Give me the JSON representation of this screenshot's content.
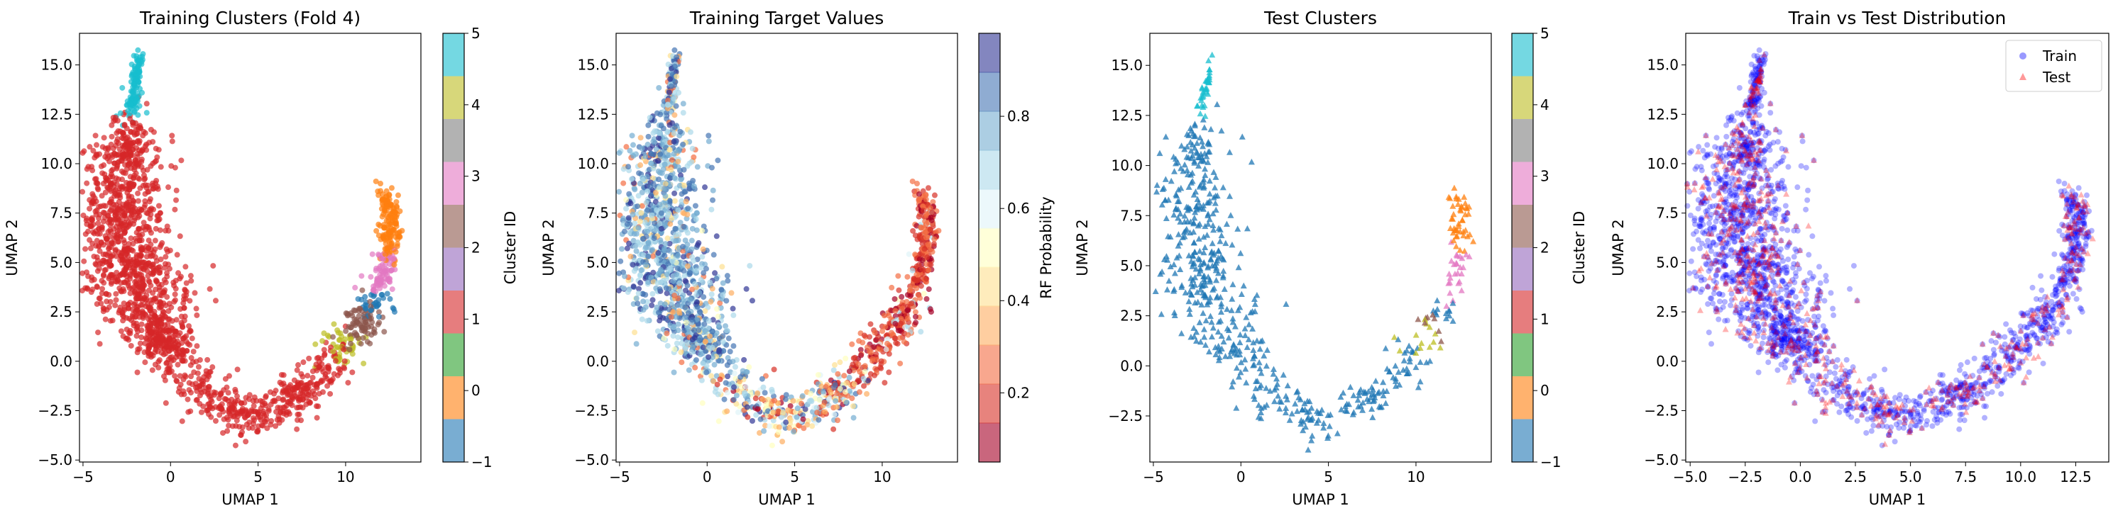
{
  "figure": {
    "background": "#ffffff"
  },
  "chart_data": [
    {
      "type": "scatter",
      "title": "Training Clusters (Fold 4)",
      "xlabel": "UMAP 1",
      "ylabel": "UMAP 2",
      "xlim": [
        -5.2,
        14.3
      ],
      "ylim": [
        -5.1,
        16.6
      ],
      "xticks": [
        -5,
        0,
        5,
        10
      ],
      "yticks": [
        -5.0,
        -2.5,
        0.0,
        2.5,
        5.0,
        7.5,
        10.0,
        12.5,
        15.0
      ],
      "xtick_labels": [
        "−5",
        "0",
        "5",
        "10"
      ],
      "ytick_labels": [
        "−5.0",
        "−2.5",
        "0.0",
        "2.5",
        "5.0",
        "7.5",
        "10.0",
        "12.5",
        "15.0"
      ],
      "marker": "circle",
      "color_by": "cluster",
      "colorbar": {
        "label": "Cluster ID",
        "type": "discrete",
        "range": [
          -1,
          5
        ],
        "ticks": [
          -1,
          0,
          1,
          2,
          3,
          4,
          5
        ],
        "tick_labels": [
          "−1",
          "0",
          "1",
          "2",
          "3",
          "4",
          "5"
        ],
        "colors": [
          "#1f77b4",
          "#ff7f0e",
          "#2ca02c",
          "#d62728",
          "#9467bd",
          "#8c564b",
          "#e377c2",
          "#7f7f7f",
          "#bcbd22",
          "#17becf"
        ]
      },
      "clusters": [
        {
          "id": 1,
          "color": "#d62728",
          "description_points": [
            [
              -2.0,
              13.0
            ],
            [
              -1.8,
              11.0
            ],
            [
              -3.5,
              9.5
            ],
            [
              -2.5,
              8.0
            ],
            [
              -4.0,
              6.5
            ],
            [
              -3.0,
              5.0
            ],
            [
              -2.0,
              3.5
            ],
            [
              -1.5,
              2.0
            ],
            [
              -0.5,
              0.5
            ],
            [
              1.0,
              -1.0
            ],
            [
              2.5,
              -2.5
            ],
            [
              4.0,
              -3.5
            ],
            [
              5.5,
              -3.0
            ],
            [
              7.0,
              -2.0
            ],
            [
              8.5,
              -1.0
            ]
          ]
        },
        {
          "id": -1,
          "color": "#1f77b4",
          "description_points": [
            [
              3.5,
              -0.8
            ],
            [
              4.2,
              -0.8
            ],
            [
              8.7,
              -0.9
            ],
            [
              9.5,
              -1.8
            ],
            [
              11.0,
              3.5
            ],
            [
              11.3,
              5.0
            ],
            [
              12.0,
              6.5
            ]
          ]
        },
        {
          "id": 0,
          "color": "#ff7f0e",
          "description_points": [
            [
              12.4,
              8.5
            ],
            [
              12.8,
              7.5
            ],
            [
              12.9,
              6.5
            ],
            [
              12.7,
              5.5
            ]
          ]
        },
        {
          "id": 3,
          "color": "#e377c2",
          "description_points": [
            [
              11.4,
              3.8
            ],
            [
              12.0,
              4.2
            ],
            [
              12.7,
              4.0
            ],
            [
              12.5,
              2.8
            ]
          ]
        },
        {
          "id": 2,
          "color": "#8c564b",
          "description_points": [
            [
              9.5,
              1.0
            ],
            [
              10.0,
              1.5
            ],
            [
              10.6,
              1.8
            ],
            [
              10.2,
              0.8
            ]
          ]
        },
        {
          "id": 4,
          "color": "#bcbd22",
          "description_points": [
            [
              10.6,
              0.3
            ],
            [
              10.2,
              -0.2
            ],
            [
              10.5,
              -0.8
            ],
            [
              11.2,
              0.5
            ]
          ]
        },
        {
          "id": 5,
          "color": "#17becf",
          "description_points": [
            [
              -2.2,
              13.8
            ],
            [
              -2.0,
              14.5
            ],
            [
              -1.8,
              15.2
            ],
            [
              -1.7,
              15.5
            ]
          ]
        }
      ]
    },
    {
      "type": "scatter",
      "title": "Training Target Values",
      "xlabel": "UMAP 1",
      "ylabel": "UMAP 2",
      "xlim": [
        -5.2,
        14.3
      ],
      "ylim": [
        -5.1,
        16.6
      ],
      "xticks": [
        -5,
        0,
        5,
        10
      ],
      "yticks": [
        -5.0,
        -2.5,
        0.0,
        2.5,
        5.0,
        7.5,
        10.0,
        12.5,
        15.0
      ],
      "xtick_labels": [
        "−5",
        "0",
        "5",
        "10"
      ],
      "ytick_labels": [
        "−5.0",
        "−2.5",
        "0.0",
        "2.5",
        "5.0",
        "7.5",
        "10.0",
        "12.5",
        "15.0"
      ],
      "marker": "circle",
      "color_by": "RF Probability",
      "colorbar": {
        "label": "RF Probability",
        "type": "continuous",
        "range": [
          0.05,
          0.98
        ],
        "ticks": [
          0.2,
          0.4,
          0.6,
          0.8
        ],
        "tick_labels": [
          "0.2",
          "0.4",
          "0.6",
          "0.8"
        ],
        "colormap": "RdYlBu",
        "colors": [
          "#a50026",
          "#d73027",
          "#f46d43",
          "#fdae61",
          "#fee090",
          "#ffffbf",
          "#e0f3f8",
          "#abd9e9",
          "#74add1",
          "#4575b4",
          "#313695"
        ]
      },
      "notes_values": "Left arm mostly high probability (blue), right arm mostly low probability (red), mixed at the bottom"
    },
    {
      "type": "scatter",
      "title": "Test Clusters",
      "xlabel": "UMAP 1",
      "ylabel": "UMAP 2",
      "xlim": [
        -5.2,
        14.3
      ],
      "ylim": [
        -4.8,
        16.6
      ],
      "xticks": [
        -5,
        0,
        5,
        10
      ],
      "yticks": [
        -2.5,
        0.0,
        2.5,
        5.0,
        7.5,
        10.0,
        12.5,
        15.0
      ],
      "xtick_labels": [
        "−5",
        "0",
        "5",
        "10"
      ],
      "ytick_labels": [
        "−2.5",
        "0.0",
        "2.5",
        "5.0",
        "7.5",
        "10.0",
        "12.5",
        "15.0"
      ],
      "marker": "triangle",
      "color_by": "cluster",
      "colorbar": {
        "label": "Cluster ID",
        "type": "discrete",
        "range": [
          -1,
          5
        ],
        "ticks": [
          -1,
          0,
          1,
          2,
          3,
          4,
          5
        ],
        "tick_labels": [
          "−1",
          "0",
          "1",
          "2",
          "3",
          "4",
          "5"
        ],
        "colors": [
          "#1f77b4",
          "#ff7f0e",
          "#2ca02c",
          "#d62728",
          "#9467bd",
          "#8c564b",
          "#e377c2",
          "#7f7f7f",
          "#bcbd22",
          "#17becf"
        ]
      }
    },
    {
      "type": "scatter",
      "title": "Train vs Test Distribution",
      "xlabel": "UMAP 1",
      "ylabel": "UMAP 2",
      "xlim": [
        -5.2,
        14.0
      ],
      "ylim": [
        -5.1,
        16.6
      ],
      "xticks": [
        -5.0,
        -2.5,
        0.0,
        2.5,
        5.0,
        7.5,
        10.0,
        12.5
      ],
      "yticks": [
        -5.0,
        -2.5,
        0.0,
        2.5,
        5.0,
        7.5,
        10.0,
        12.5,
        15.0
      ],
      "xtick_labels": [
        "−5.0",
        "−2.5",
        "0.0",
        "2.5",
        "5.0",
        "7.5",
        "10.0",
        "12.5"
      ],
      "ytick_labels": [
        "−5.0",
        "−2.5",
        "0.0",
        "2.5",
        "5.0",
        "7.5",
        "10.0",
        "12.5",
        "15.0"
      ],
      "legend": {
        "placement": "top-right",
        "entries": [
          {
            "name": "Train",
            "marker": "circle",
            "color": "#0000ff"
          },
          {
            "name": "Test",
            "marker": "triangle",
            "color": "#ff0000"
          }
        ]
      },
      "series": [
        {
          "name": "Train",
          "color": "#0000ff",
          "marker": "circle"
        },
        {
          "name": "Test",
          "color": "#ff0000",
          "marker": "triangle"
        }
      ]
    }
  ]
}
